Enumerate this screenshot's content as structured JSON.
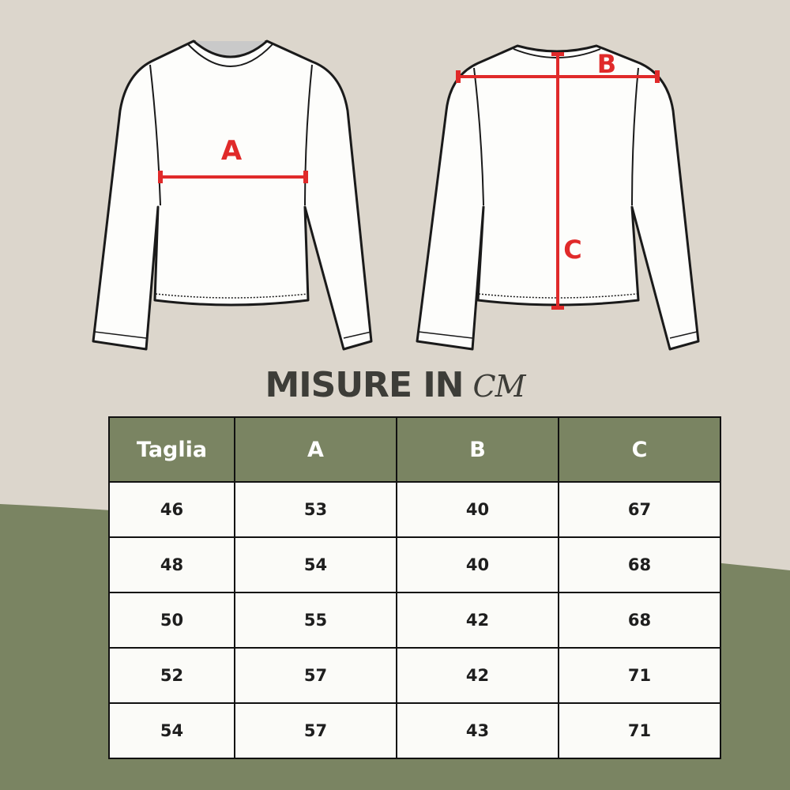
{
  "colors": {
    "background": "#dcd6cc",
    "accent_green": "#7a8462",
    "measure_red": "#e02a2a",
    "text_dark": "#3d3d38"
  },
  "diagram": {
    "front_label": "A",
    "back_labels": [
      "B",
      "C"
    ]
  },
  "title": {
    "main": "MISURE IN",
    "unit": "CM"
  },
  "table": {
    "headers": [
      "Taglia",
      "A",
      "B",
      "C"
    ],
    "rows": [
      [
        "46",
        "53",
        "40",
        "67"
      ],
      [
        "48",
        "54",
        "40",
        "68"
      ],
      [
        "50",
        "55",
        "42",
        "68"
      ],
      [
        "52",
        "57",
        "42",
        "71"
      ],
      [
        "54",
        "57",
        "43",
        "71"
      ]
    ]
  }
}
